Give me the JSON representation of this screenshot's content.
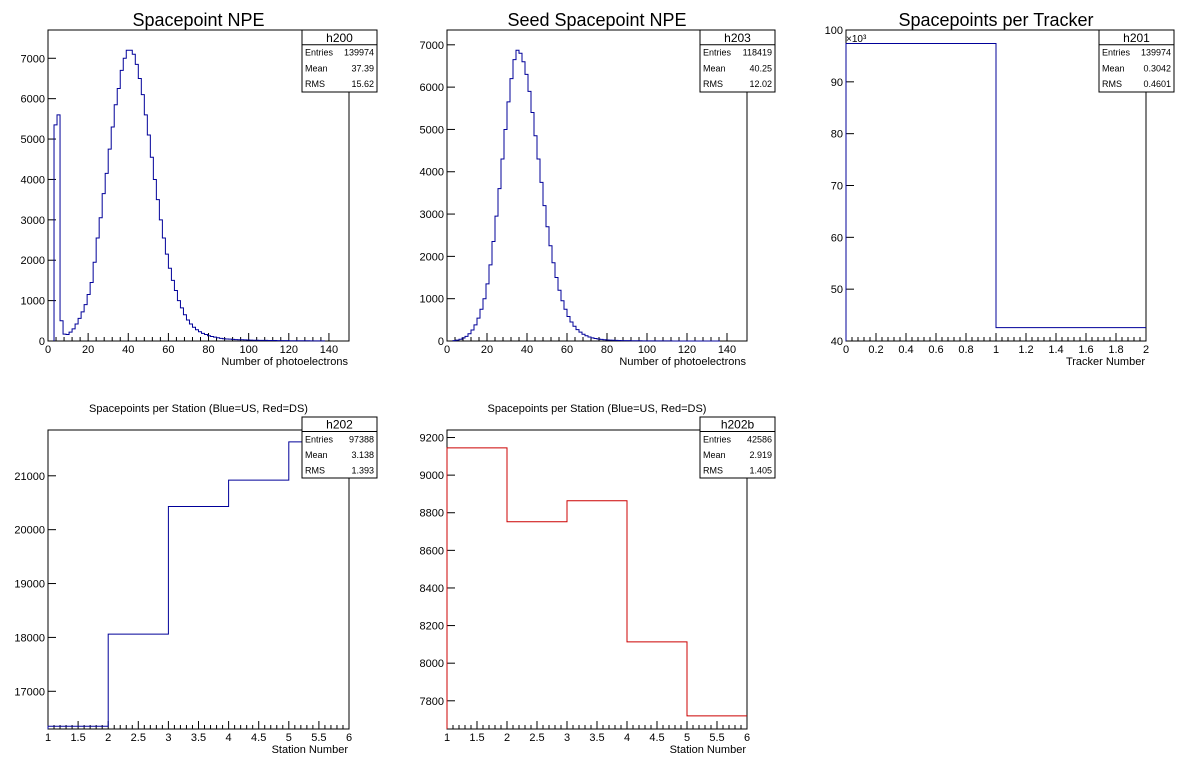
{
  "chart_data": [
    {
      "type": "histogram",
      "title": "Spacepoint NPE",
      "xlabel": "Number of photoelectrons",
      "ylabel": "",
      "xlim": [
        0,
        150
      ],
      "ylim": [
        0,
        7700
      ],
      "xticks": [
        0,
        20,
        40,
        60,
        80,
        100,
        120,
        140
      ],
      "yticks": [
        0,
        1000,
        2000,
        3000,
        4000,
        5000,
        6000,
        7000
      ],
      "color": "#000099",
      "bin_width": 1.5,
      "x_start": 3,
      "values": [
        5350,
        5600,
        500,
        170,
        160,
        220,
        300,
        420,
        560,
        720,
        900,
        1150,
        1450,
        1950,
        2550,
        3050,
        3650,
        4150,
        4750,
        5300,
        5850,
        6250,
        6700,
        7000,
        7200,
        7200,
        7100,
        6850,
        6500,
        6100,
        5600,
        5100,
        4550,
        4000,
        3500,
        3000,
        2550,
        2150,
        1800,
        1500,
        1250,
        1000,
        820,
        650,
        520,
        420,
        340,
        280,
        230,
        190,
        160,
        130,
        110,
        95,
        80,
        65,
        55,
        50,
        45,
        40,
        35,
        32,
        30,
        28,
        25,
        22,
        20,
        18,
        16,
        15,
        14,
        13,
        12,
        11,
        10,
        9,
        8,
        8,
        7,
        7,
        6,
        6,
        5,
        5,
        5,
        4,
        4,
        4,
        3,
        3
      ],
      "stats": {
        "name": "h200",
        "rows": [
          [
            "Entries",
            "139974"
          ],
          [
            "Mean",
            "37.39"
          ],
          [
            "RMS",
            "15.62"
          ]
        ]
      }
    },
    {
      "type": "histogram",
      "title": "Seed Spacepoint NPE",
      "xlabel": "Number of photoelectrons",
      "ylabel": "",
      "xlim": [
        0,
        150
      ],
      "ylim": [
        0,
        7350
      ],
      "xticks": [
        0,
        20,
        40,
        60,
        80,
        100,
        120,
        140
      ],
      "yticks": [
        0,
        1000,
        2000,
        3000,
        4000,
        5000,
        6000,
        7000
      ],
      "color": "#000099",
      "bin_width": 1.5,
      "x_start": 3,
      "values": [
        10,
        20,
        40,
        70,
        110,
        170,
        260,
        380,
        540,
        750,
        1000,
        1350,
        1800,
        2350,
        2950,
        3600,
        4300,
        5000,
        5650,
        6200,
        6650,
        6870,
        6800,
        6600,
        6300,
        5900,
        5400,
        4850,
        4300,
        3750,
        3200,
        2700,
        2250,
        1850,
        1500,
        1200,
        950,
        750,
        580,
        450,
        350,
        270,
        210,
        160,
        125,
        95,
        75,
        60,
        48,
        38,
        30,
        25,
        20,
        17,
        14,
        12,
        10,
        9,
        8,
        7,
        6,
        5,
        5,
        4,
        4,
        3,
        3,
        3,
        2,
        2,
        2,
        2,
        2,
        1,
        1,
        1,
        1,
        1,
        1,
        1,
        1,
        1,
        1,
        1,
        1,
        1,
        1,
        1,
        1
      ],
      "stats": {
        "name": "h203",
        "rows": [
          [
            "Entries",
            "118419"
          ],
          [
            "Mean",
            "40.25"
          ],
          [
            "RMS",
            "12.02"
          ]
        ]
      }
    },
    {
      "type": "histogram",
      "title": "Spacepoints per Tracker",
      "xlabel": "Tracker Number",
      "ylabel": "",
      "multiplier": "×10³",
      "xlim": [
        0,
        2
      ],
      "ylim": [
        40,
        100
      ],
      "xticks": [
        "0",
        "0.2",
        "0.4",
        "0.6",
        "0.8",
        "1",
        "1.2",
        "1.4",
        "1.6",
        "1.8",
        "2"
      ],
      "yticks": [
        40,
        50,
        60,
        70,
        80,
        90,
        100
      ],
      "color": "#000099",
      "bin_width": 1,
      "x_start": 0,
      "values": [
        97.388,
        42.586
      ],
      "stats": {
        "name": "h201",
        "rows": [
          [
            "Entries",
            "139974"
          ],
          [
            "Mean",
            "0.3042"
          ],
          [
            "RMS",
            "0.4601"
          ]
        ]
      }
    },
    {
      "type": "histogram",
      "title": "Spacepoints per Station (Blue=US, Red=DS)",
      "xlabel": "Station Number",
      "ylabel": "",
      "xlim": [
        1,
        6
      ],
      "ylim": [
        16300,
        21850
      ],
      "xticks": [
        "1",
        "1.5",
        "2",
        "2.5",
        "3",
        "3.5",
        "4",
        "4.5",
        "5",
        "5.5",
        "6"
      ],
      "yticks": [
        17000,
        18000,
        19000,
        20000,
        21000
      ],
      "color": "#000099",
      "bin_width": 1,
      "x_start": 1,
      "values": [
        16350,
        18060,
        20430,
        20920,
        21630
      ],
      "stats": {
        "name": "h202",
        "rows": [
          [
            "Entries",
            "97388"
          ],
          [
            "Mean",
            "3.138"
          ],
          [
            "RMS",
            "1.393"
          ]
        ]
      }
    },
    {
      "type": "histogram",
      "title": "Spacepoints per Station (Blue=US, Red=DS)",
      "xlabel": "Station Number",
      "ylabel": "",
      "xlim": [
        1,
        6
      ],
      "ylim": [
        7650,
        9240
      ],
      "xticks": [
        "1",
        "1.5",
        "2",
        "2.5",
        "3",
        "3.5",
        "4",
        "4.5",
        "5",
        "5.5",
        "6"
      ],
      "yticks": [
        7800,
        8000,
        8200,
        8400,
        8600,
        8800,
        9000,
        9200
      ],
      "color": "#cc0000",
      "bin_width": 1,
      "x_start": 1,
      "values": [
        9145,
        8752,
        8864,
        8113,
        7720
      ],
      "stats": {
        "name": "h202b",
        "rows": [
          [
            "Entries",
            "42586"
          ],
          [
            "Mean",
            "2.919"
          ],
          [
            "RMS",
            "1.405"
          ]
        ]
      }
    }
  ]
}
